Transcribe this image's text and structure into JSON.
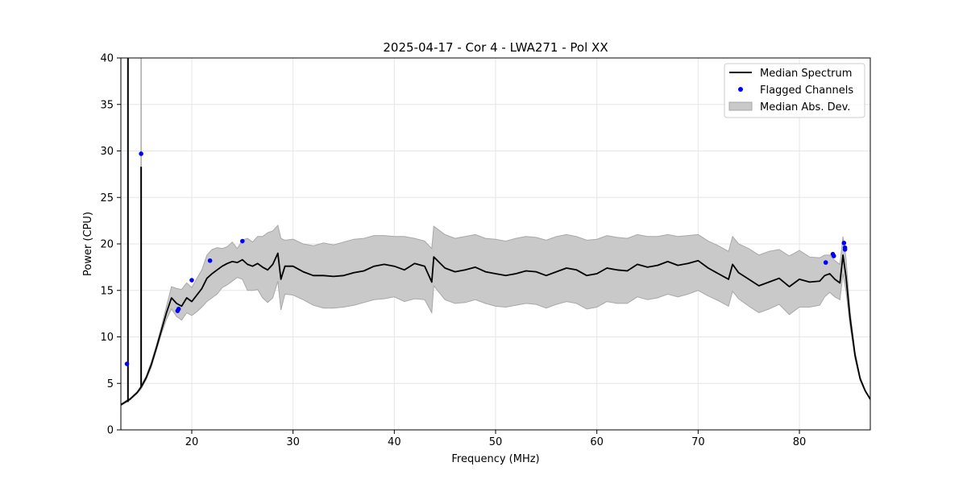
{
  "chart_data": {
    "type": "line",
    "title": "2025-04-17 - Cor 4 - LWA271 - Pol XX",
    "xlabel": "Frequency (MHz)",
    "ylabel": "Power (CPU)",
    "xlim": [
      13.0,
      87.0
    ],
    "ylim": [
      0,
      40
    ],
    "xticks": [
      20,
      30,
      40,
      50,
      60,
      70,
      80
    ],
    "yticks": [
      0,
      5,
      10,
      15,
      20,
      25,
      30,
      35,
      40
    ],
    "grid": true,
    "legend": {
      "placement": "upper-right",
      "entries": [
        "Median Spectrum",
        "Flagged Channels",
        "Median Abs. Dev."
      ]
    },
    "colors": {
      "median_spectrum": "#000000",
      "flagged_channels": "#0000ff",
      "mad_band": "#c9c9c9",
      "mad_edge": "#a8a8a8",
      "grid": "#e6e6e6"
    },
    "series": [
      {
        "name": "Median Spectrum",
        "x": [
          13.0,
          13.3,
          13.6,
          13.9,
          14.2,
          14.6,
          15.0,
          15.5,
          16.0,
          16.5,
          17.0,
          17.5,
          18.0,
          18.5,
          19.0,
          19.5,
          20.0,
          20.5,
          21.0,
          21.5,
          22.0,
          22.5,
          23.0,
          23.5,
          24.0,
          24.5,
          25.0,
          25.5,
          26.0,
          26.5,
          27.0,
          27.5,
          28.0,
          28.5,
          28.8,
          29.2,
          30.0,
          31.0,
          32.0,
          33.0,
          34.0,
          35.0,
          36.0,
          37.0,
          38.0,
          39.0,
          40.0,
          41.0,
          42.0,
          43.0,
          43.7,
          43.9,
          45.0,
          46.0,
          47.0,
          48.0,
          49.0,
          50.0,
          51.0,
          52.0,
          53.0,
          54.0,
          55.0,
          56.0,
          57.0,
          58.0,
          59.0,
          60.0,
          61.0,
          62.0,
          63.0,
          64.0,
          65.0,
          66.0,
          67.0,
          68.0,
          69.0,
          70.0,
          71.0,
          72.0,
          73.0,
          73.4,
          74.0,
          75.0,
          76.0,
          77.0,
          78.0,
          79.0,
          80.0,
          81.0,
          82.0,
          82.5,
          83.0,
          83.5,
          84.0,
          84.3,
          84.6,
          85.0,
          85.5,
          86.0,
          86.5,
          87.0
        ],
        "y": [
          2.7,
          2.9,
          3.1,
          3.3,
          3.6,
          4.0,
          4.6,
          5.6,
          7.0,
          8.8,
          10.7,
          12.6,
          14.2,
          13.6,
          13.3,
          14.2,
          13.8,
          14.5,
          15.2,
          16.3,
          16.8,
          17.2,
          17.6,
          17.9,
          18.1,
          18.0,
          18.3,
          17.8,
          17.6,
          17.9,
          17.5,
          17.2,
          17.8,
          19.0,
          16.2,
          17.6,
          17.6,
          17.0,
          16.6,
          16.6,
          16.5,
          16.6,
          16.9,
          17.1,
          17.6,
          17.8,
          17.6,
          17.2,
          17.9,
          17.6,
          15.9,
          18.6,
          17.4,
          17.0,
          17.2,
          17.5,
          17.0,
          16.8,
          16.6,
          16.8,
          17.1,
          17.0,
          16.6,
          17.0,
          17.4,
          17.2,
          16.6,
          16.8,
          17.4,
          17.2,
          17.1,
          17.8,
          17.5,
          17.7,
          18.1,
          17.7,
          17.9,
          18.2,
          17.4,
          16.8,
          16.2,
          17.8,
          16.9,
          16.2,
          15.5,
          15.9,
          16.3,
          15.4,
          16.2,
          15.9,
          16.0,
          16.6,
          16.8,
          16.2,
          15.8,
          18.8,
          16.5,
          12.0,
          8.0,
          5.5,
          4.2,
          3.3
        ]
      },
      {
        "name": "Flagged Channels",
        "x": [
          13.6,
          15.0,
          18.6,
          18.7,
          20.0,
          21.8,
          25.0,
          82.6,
          83.3,
          83.4,
          84.4,
          84.5,
          84.5
        ],
        "y": [
          7.1,
          29.7,
          12.8,
          13.0,
          16.1,
          18.2,
          20.3,
          18.0,
          18.9,
          18.7,
          20.1,
          19.6,
          19.4
        ]
      },
      {
        "name": "Median Abs. Dev.",
        "x": [
          13.0,
          13.3,
          13.6,
          13.9,
          14.2,
          14.6,
          15.0,
          15.5,
          16.0,
          16.5,
          17.0,
          17.5,
          18.0,
          18.5,
          19.0,
          19.5,
          20.0,
          20.5,
          21.0,
          21.5,
          22.0,
          22.5,
          23.0,
          23.5,
          24.0,
          24.5,
          25.0,
          25.5,
          26.0,
          26.5,
          27.0,
          27.5,
          28.0,
          28.5,
          28.8,
          29.2,
          30.0,
          31.0,
          32.0,
          33.0,
          34.0,
          35.0,
          36.0,
          37.0,
          38.0,
          39.0,
          40.0,
          41.0,
          42.0,
          43.0,
          43.7,
          43.9,
          45.0,
          46.0,
          47.0,
          48.0,
          49.0,
          50.0,
          51.0,
          52.0,
          53.0,
          54.0,
          55.0,
          56.0,
          57.0,
          58.0,
          59.0,
          60.0,
          61.0,
          62.0,
          63.0,
          64.0,
          65.0,
          66.0,
          67.0,
          68.0,
          69.0,
          70.0,
          71.0,
          72.0,
          73.0,
          73.4,
          74.0,
          75.0,
          76.0,
          77.0,
          78.0,
          79.0,
          80.0,
          81.0,
          82.0,
          82.5,
          83.0,
          83.5,
          84.0,
          84.3,
          84.6,
          85.0,
          85.5,
          86.0,
          86.5,
          87.0
        ],
        "upper": [
          2.8,
          3.0,
          3.2,
          3.4,
          3.7,
          4.1,
          4.8,
          5.8,
          7.3,
          9.1,
          11.1,
          13.3,
          15.4,
          15.2,
          15.1,
          15.8,
          15.3,
          16.3,
          17.2,
          18.8,
          19.4,
          19.6,
          19.5,
          19.7,
          20.2,
          19.5,
          20.4,
          20.6,
          20.2,
          20.8,
          20.8,
          21.2,
          21.4,
          22.0,
          20.6,
          20.4,
          20.5,
          20.0,
          19.8,
          20.1,
          19.9,
          20.2,
          20.5,
          20.6,
          20.9,
          20.9,
          20.8,
          20.8,
          20.6,
          20.3,
          19.5,
          21.9,
          21.0,
          20.6,
          20.8,
          21.0,
          20.6,
          20.5,
          20.3,
          20.6,
          20.8,
          20.7,
          20.4,
          20.8,
          21.0,
          20.8,
          20.4,
          20.5,
          20.9,
          20.7,
          20.6,
          21.0,
          20.8,
          20.8,
          21.0,
          20.8,
          20.9,
          21.0,
          20.3,
          19.8,
          19.2,
          20.8,
          20.0,
          19.5,
          18.8,
          19.2,
          19.4,
          18.7,
          19.3,
          18.6,
          18.5,
          18.8,
          18.8,
          18.2,
          17.8,
          20.8,
          18.5,
          12.8,
          8.4,
          5.7,
          4.3,
          3.3
        ],
        "lower": [
          2.6,
          2.8,
          3.0,
          3.2,
          3.5,
          3.9,
          4.4,
          5.4,
          6.7,
          8.5,
          10.3,
          11.9,
          13.0,
          12.2,
          11.8,
          12.6,
          12.3,
          12.7,
          13.2,
          13.8,
          14.2,
          14.6,
          15.3,
          15.6,
          16.0,
          16.4,
          16.2,
          15.0,
          15.0,
          15.1,
          14.2,
          13.7,
          14.2,
          16.0,
          12.9,
          14.6,
          14.5,
          14.0,
          13.4,
          13.1,
          13.1,
          13.2,
          13.4,
          13.7,
          14.0,
          14.1,
          14.3,
          13.8,
          14.1,
          14.0,
          12.6,
          15.5,
          14.0,
          13.6,
          13.7,
          14.0,
          13.6,
          13.3,
          13.2,
          13.4,
          13.6,
          13.5,
          13.1,
          13.5,
          13.8,
          13.6,
          13.0,
          13.2,
          13.8,
          13.6,
          13.6,
          14.3,
          14.0,
          14.2,
          14.6,
          14.3,
          14.6,
          15.0,
          14.4,
          13.9,
          13.3,
          14.9,
          14.1,
          13.3,
          12.6,
          13.0,
          13.5,
          12.4,
          13.2,
          13.2,
          13.4,
          14.3,
          14.8,
          14.3,
          14.0,
          16.8,
          14.9,
          11.2,
          7.6,
          5.3,
          4.1,
          3.2
        ]
      }
    ],
    "spikes": [
      {
        "x": 13.7,
        "ymin": 3.0,
        "ymax": 40.0
      },
      {
        "x": 15.0,
        "ymin": 4.6,
        "ymax": 28.3
      }
    ],
    "mad_spike": {
      "x": 15.0,
      "ymin": 4.6,
      "ymax": 40.0
    }
  }
}
